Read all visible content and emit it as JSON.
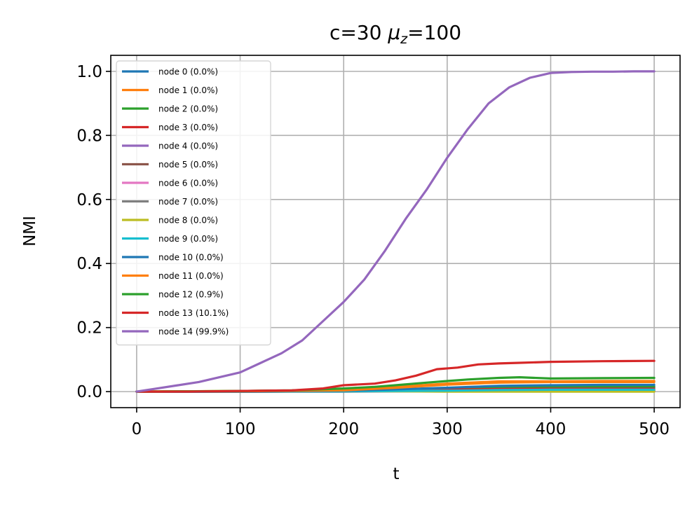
{
  "chart_data": {
    "type": "line",
    "title_main": "c=30 ",
    "title_mu": "μ",
    "title_sub": "z",
    "title_rest": "=100",
    "xlabel": "t",
    "ylabel": "NMI",
    "xlim": [
      -25,
      525
    ],
    "ylim": [
      -0.05,
      1.05
    ],
    "xticks": [
      0,
      100,
      200,
      300,
      400,
      500
    ],
    "yticks": [
      0.0,
      0.2,
      0.4,
      0.6,
      0.8,
      1.0
    ],
    "xtick_labels": [
      "0",
      "100",
      "200",
      "300",
      "400",
      "500"
    ],
    "ytick_labels": [
      "0.0",
      "0.2",
      "0.4",
      "0.6",
      "0.8",
      "1.0"
    ],
    "grid": true,
    "legend_position": "upper-left",
    "series": [
      {
        "name": "node 0 (0.0%)",
        "color": "#1f77b4",
        "x": [
          0,
          100,
          200,
          250,
          300,
          350,
          400,
          450,
          500
        ],
        "y": [
          0,
          0.001,
          0.002,
          0.005,
          0.01,
          0.012,
          0.012,
          0.013,
          0.013
        ]
      },
      {
        "name": "node 1 (0.0%)",
        "color": "#ff7f0e",
        "x": [
          0,
          100,
          200,
          250,
          300,
          350,
          400,
          450,
          500
        ],
        "y": [
          0,
          0.002,
          0.005,
          0.015,
          0.025,
          0.032,
          0.032,
          0.033,
          0.033
        ]
      },
      {
        "name": "node 2 (0.0%)",
        "color": "#2ca02c",
        "x": [
          0,
          100,
          200,
          250,
          300,
          350,
          400,
          450,
          500
        ],
        "y": [
          0,
          0.001,
          0.002,
          0.005,
          0.01,
          0.015,
          0.016,
          0.016,
          0.016
        ]
      },
      {
        "name": "node 3 (0.0%)",
        "color": "#d62728",
        "x": [
          0,
          100,
          200,
          250,
          300,
          350,
          400,
          450,
          500
        ],
        "y": [
          0,
          0.001,
          0.001,
          0.003,
          0.006,
          0.008,
          0.009,
          0.009,
          0.009
        ]
      },
      {
        "name": "node 4 (0.0%)",
        "color": "#9467bd",
        "x": [
          0,
          100,
          200,
          250,
          300,
          350,
          400,
          450,
          500
        ],
        "y": [
          0,
          0,
          0.001,
          0.002,
          0.003,
          0.004,
          0.004,
          0.004,
          0.004
        ]
      },
      {
        "name": "node 5 (0.0%)",
        "color": "#8c564b",
        "x": [
          0,
          100,
          200,
          250,
          300,
          350,
          400,
          450,
          500
        ],
        "y": [
          0,
          0,
          0.001,
          0.002,
          0.003,
          0.004,
          0.005,
          0.005,
          0.005
        ]
      },
      {
        "name": "node 6 (0.0%)",
        "color": "#e377c2",
        "x": [
          0,
          100,
          200,
          250,
          300,
          350,
          400,
          450,
          500
        ],
        "y": [
          0,
          0,
          0.001,
          0.001,
          0.002,
          0.002,
          0.002,
          0.002,
          0.002
        ]
      },
      {
        "name": "node 7 (0.0%)",
        "color": "#7f7f7f",
        "x": [
          0,
          100,
          200,
          250,
          300,
          350,
          400,
          450,
          500
        ],
        "y": [
          0,
          0,
          0,
          0.001,
          0.001,
          0.001,
          0.001,
          0.001,
          0.001
        ]
      },
      {
        "name": "node 8 (0.0%)",
        "color": "#bcbd22",
        "x": [
          0,
          100,
          200,
          250,
          300,
          350,
          400,
          450,
          500
        ],
        "y": [
          0,
          0.002,
          0.002,
          0.001,
          0,
          0,
          0,
          0,
          0
        ]
      },
      {
        "name": "node 9 (0.0%)",
        "color": "#17becf",
        "x": [
          0,
          100,
          200,
          250,
          300,
          350,
          400,
          450,
          500
        ],
        "y": [
          0,
          0,
          0.001,
          0.002,
          0.003,
          0.005,
          0.006,
          0.006,
          0.006
        ]
      },
      {
        "name": "node 10 (0.0%)",
        "color": "#1f77b4",
        "x": [
          0,
          100,
          200,
          250,
          300,
          350,
          400,
          450,
          500
        ],
        "y": [
          0,
          0,
          0.003,
          0.007,
          0.012,
          0.018,
          0.02,
          0.021,
          0.021
        ]
      },
      {
        "name": "node 11 (0.0%)",
        "color": "#ff7f0e",
        "x": [
          0,
          100,
          200,
          250,
          300,
          350,
          400,
          450,
          500
        ],
        "y": [
          0,
          0.001,
          0.004,
          0.012,
          0.022,
          0.028,
          0.03,
          0.03,
          0.03
        ]
      },
      {
        "name": "node 12 (0.9%)",
        "color": "#2ca02c",
        "x": [
          0,
          50,
          100,
          150,
          200,
          230,
          250,
          280,
          300,
          320,
          350,
          370,
          400,
          450,
          500
        ],
        "y": [
          0,
          0.001,
          0.002,
          0.004,
          0.01,
          0.015,
          0.02,
          0.028,
          0.033,
          0.038,
          0.043,
          0.045,
          0.041,
          0.042,
          0.043
        ]
      },
      {
        "name": "node 13 (10.1%)",
        "color": "#d62728",
        "x": [
          0,
          50,
          100,
          150,
          180,
          200,
          230,
          250,
          270,
          290,
          310,
          330,
          350,
          370,
          400,
          450,
          500
        ],
        "y": [
          0,
          0,
          0.002,
          0.004,
          0.01,
          0.02,
          0.025,
          0.035,
          0.05,
          0.07,
          0.075,
          0.085,
          0.088,
          0.09,
          0.093,
          0.095,
          0.096
        ]
      },
      {
        "name": "node 14 (99.9%)",
        "color": "#9467bd",
        "x": [
          0,
          20,
          40,
          60,
          80,
          100,
          120,
          140,
          160,
          180,
          200,
          220,
          240,
          260,
          280,
          300,
          320,
          340,
          360,
          380,
          400,
          420,
          440,
          460,
          480,
          500
        ],
        "y": [
          0,
          0.01,
          0.02,
          0.03,
          0.045,
          0.06,
          0.09,
          0.12,
          0.16,
          0.22,
          0.28,
          0.35,
          0.44,
          0.54,
          0.63,
          0.73,
          0.82,
          0.9,
          0.95,
          0.98,
          0.995,
          0.998,
          0.999,
          0.999,
          1.0,
          1.0
        ]
      }
    ]
  }
}
